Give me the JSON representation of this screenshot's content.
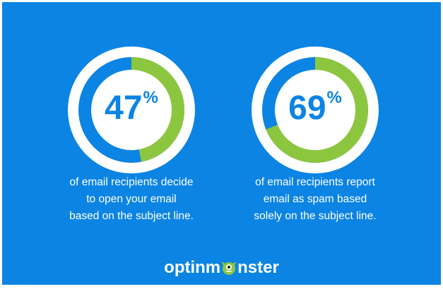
{
  "chart_data": [
    {
      "type": "donut",
      "value": 47,
      "value_text": "47",
      "unit": "%",
      "caption_lines": [
        "of email recipients decide",
        "to open your email",
        "based on the subject line."
      ],
      "colors": {
        "filled": "#8cc63f",
        "remaining": "#0b84e3",
        "ring": "#ffffff"
      }
    },
    {
      "type": "donut",
      "value": 69,
      "value_text": "69",
      "unit": "%",
      "caption_lines": [
        "of email recipients report",
        "email as spam based",
        "solely on the subject line."
      ],
      "colors": {
        "filled": "#8cc63f",
        "remaining": "#0b84e3",
        "ring": "#ffffff"
      }
    }
  ],
  "brand": {
    "logo_text_before": "optinm",
    "logo_text_after": "nster",
    "logo_icon": "monster-icon"
  },
  "colors": {
    "background": "#0b84e3",
    "accent": "#8cc63f",
    "text": "#ffffff"
  }
}
